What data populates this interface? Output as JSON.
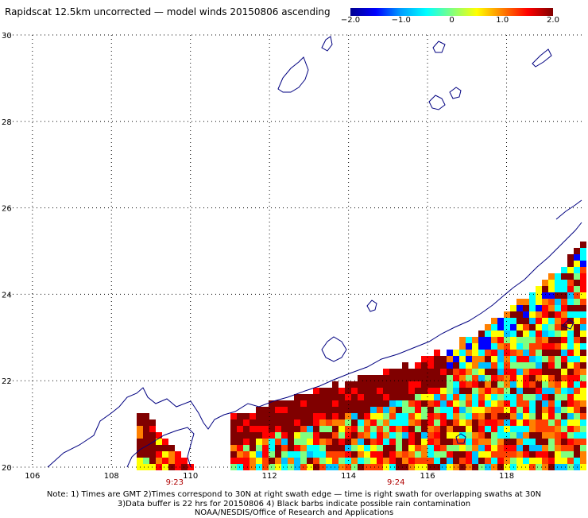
{
  "title": "Rapidscat 12.5km uncorrected — model winds 20150806 ascending",
  "colorbar": {
    "min": -2.0,
    "max": 2.0,
    "ticks": [
      {
        "value": -2.0,
        "label": "−2.0"
      },
      {
        "value": -1.0,
        "label": "−1.0"
      },
      {
        "value": 0,
        "label": "0"
      },
      {
        "value": 1.0,
        "label": "1.0"
      },
      {
        "value": 2.0,
        "label": "2.0"
      }
    ],
    "colors": [
      "#00008f",
      "#0000ff",
      "#00a0ff",
      "#00ffff",
      "#80ff80",
      "#ffff00",
      "#ff8000",
      "#ff0000",
      "#800000"
    ]
  },
  "map": {
    "lon_range": [
      105.3,
      119.9
    ],
    "lat_range": [
      20.0,
      30.0
    ],
    "lon_ticks": [
      106,
      108,
      110,
      112,
      114,
      116,
      118
    ],
    "lat_ticks": [
      20,
      22,
      24,
      26,
      28,
      30
    ],
    "grid": "dotted",
    "coastline_color": "#000080"
  },
  "swath_times": [
    {
      "label": "9:23",
      "lon": 109.6
    },
    {
      "label": "9:24",
      "lon": 115.2
    }
  ],
  "notes": [
    "Note: 1) Times are GMT 2)Times correspond to 30N at right swath edge — time is right swath for overlapping swaths at 30N",
    "3)Data buffer is 22 hrs for 20150806 4) Black barbs indicate possible rain contamination",
    "NOAA/NESDIS/Office of Research and Applications"
  ]
}
